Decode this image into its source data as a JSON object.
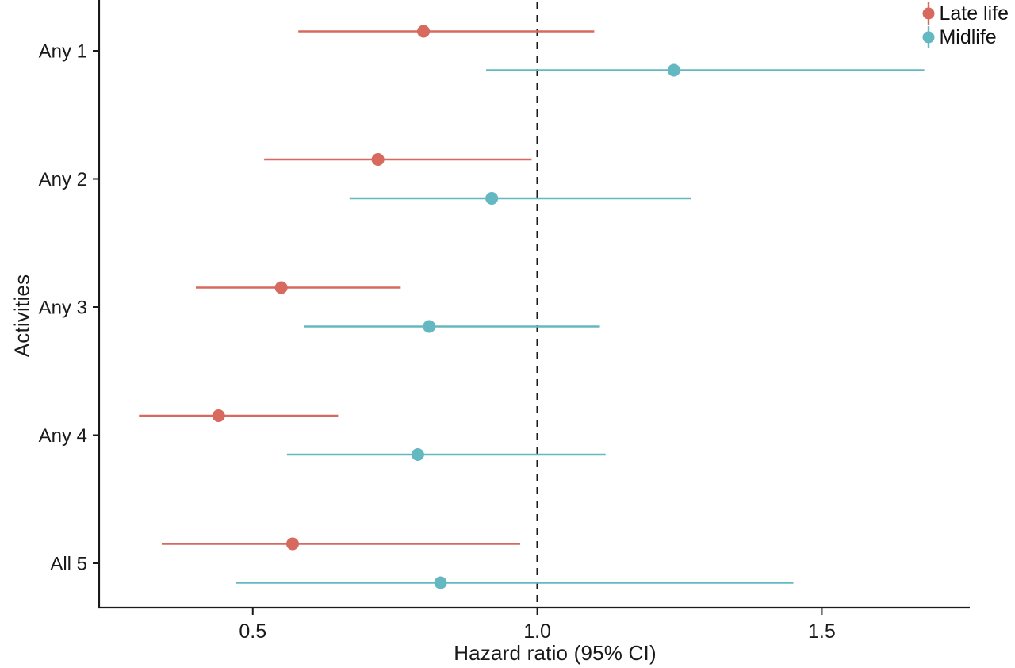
{
  "chart_data": {
    "type": "scatter",
    "subtype": "forest-plot-pointrange",
    "title": "",
    "xlabel": "Hazard ratio (95% CI)",
    "ylabel": "Activities",
    "categories": [
      "Any 1",
      "Any 2",
      "Any 3",
      "Any 4",
      "All 5"
    ],
    "xlim": [
      0.23,
      1.76
    ],
    "x_ticks": [
      0.5,
      1.0,
      1.5
    ],
    "x_tick_labels": [
      "0.5",
      "1.0",
      "1.5"
    ],
    "reference_line": 1.0,
    "reference_line_style": "dashed",
    "grid": false,
    "legend_position": "top-right",
    "text_color": "#1a1a1a",
    "background_color": "#ffffff",
    "series": [
      {
        "name": "Late life",
        "color": "#D7695F",
        "values": [
          {
            "category": "Any 1",
            "hr": 0.8,
            "lo": 0.58,
            "hi": 1.1
          },
          {
            "category": "Any 2",
            "hr": 0.72,
            "lo": 0.52,
            "hi": 0.99
          },
          {
            "category": "Any 3",
            "hr": 0.55,
            "lo": 0.4,
            "hi": 0.76
          },
          {
            "category": "Any 4",
            "hr": 0.44,
            "lo": 0.3,
            "hi": 0.65
          },
          {
            "category": "All 5",
            "hr": 0.57,
            "lo": 0.34,
            "hi": 0.97
          }
        ]
      },
      {
        "name": "Midlife",
        "color": "#64B8C1",
        "values": [
          {
            "category": "Any 1",
            "hr": 1.24,
            "lo": 0.91,
            "hi": 1.68
          },
          {
            "category": "Any 2",
            "hr": 0.92,
            "lo": 0.67,
            "hi": 1.27
          },
          {
            "category": "Any 3",
            "hr": 0.81,
            "lo": 0.59,
            "hi": 1.11
          },
          {
            "category": "Any 4",
            "hr": 0.79,
            "lo": 0.56,
            "hi": 1.12
          },
          {
            "category": "All 5",
            "hr": 0.83,
            "lo": 0.47,
            "hi": 1.45
          }
        ]
      }
    ]
  }
}
